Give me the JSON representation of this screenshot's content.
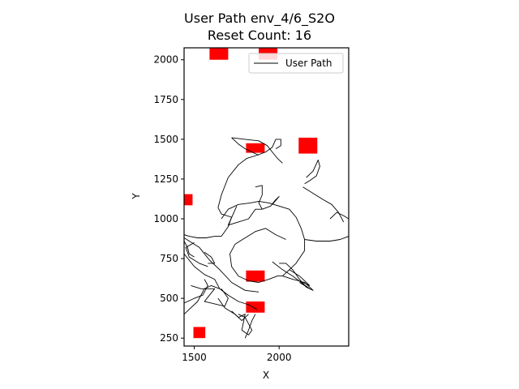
{
  "chart_data": {
    "type": "line",
    "title": "User Path env_4/6_S2O",
    "subtitle": "Reset Count: 16",
    "xlabel": "X",
    "ylabel": "Y",
    "xlim": [
      1440,
      2410
    ],
    "ylim": [
      200,
      2075
    ],
    "xticks": [
      1500,
      2000
    ],
    "yticks": [
      250,
      500,
      750,
      1000,
      1250,
      1500,
      1750,
      2000
    ],
    "grid": false,
    "legend": {
      "position": "top-right",
      "entries": [
        {
          "label": "User Path",
          "color": "#000000"
        }
      ]
    },
    "obstacles_color": "#ff0000",
    "path_color": "#000000",
    "obstacles": [
      {
        "x": 1645,
        "y": 2040,
        "w": 110,
        "h": 80
      },
      {
        "x": 1935,
        "y": 2040,
        "w": 110,
        "h": 80
      },
      {
        "x": 1860,
        "y": 1445,
        "w": 110,
        "h": 60
      },
      {
        "x": 2170,
        "y": 1460,
        "w": 110,
        "h": 100
      },
      {
        "x": 1455,
        "y": 1120,
        "w": 70,
        "h": 70
      },
      {
        "x": 1860,
        "y": 640,
        "w": 110,
        "h": 70
      },
      {
        "x": 1860,
        "y": 445,
        "w": 110,
        "h": 70
      },
      {
        "x": 1530,
        "y": 285,
        "w": 70,
        "h": 70
      }
    ],
    "series": [
      {
        "name": "User Path",
        "segments": [
          [
            [
              1440,
              880
            ],
            [
              1530,
              820
            ],
            [
              1590,
              740
            ],
            [
              1650,
              680
            ],
            [
              1720,
              600
            ],
            [
              1800,
              550
            ],
            [
              1880,
              540
            ]
          ],
          [
            [
              1440,
              780
            ],
            [
              1500,
              700
            ],
            [
              1560,
              650
            ],
            [
              1620,
              620
            ],
            [
              1650,
              560
            ],
            [
              1700,
              520
            ],
            [
              1760,
              480
            ],
            [
              1820,
              460
            ],
            [
              1870,
              430
            ]
          ],
          [
            [
              1500,
              850
            ],
            [
              1450,
              820
            ],
            [
              1470,
              760
            ],
            [
              1530,
              720
            ],
            [
              1580,
              700
            ]
          ],
          [
            [
              1440,
              400
            ],
            [
              1520,
              480
            ],
            [
              1560,
              560
            ],
            [
              1600,
              580
            ],
            [
              1650,
              560
            ],
            [
              1700,
              520
            ]
          ],
          [
            [
              1480,
              580
            ],
            [
              1540,
              560
            ],
            [
              1620,
              560
            ],
            [
              1560,
              480
            ],
            [
              1680,
              450
            ],
            [
              1700,
              500
            ],
            [
              1660,
              560
            ]
          ],
          [
            [
              1440,
              470
            ],
            [
              1500,
              500
            ],
            [
              1550,
              520
            ],
            [
              1580,
              580
            ],
            [
              1560,
              620
            ]
          ],
          [
            [
              1720,
              420
            ],
            [
              1760,
              380
            ],
            [
              1800,
              400
            ],
            [
              1780,
              300
            ],
            [
              1820,
              270
            ],
            [
              1840,
              300
            ],
            [
              1800,
              380
            ],
            [
              1760,
              400
            ]
          ],
          [
            [
              1800,
              250
            ],
            [
              1820,
              300
            ],
            [
              1840,
              360
            ],
            [
              1860,
              400
            ]
          ],
          [
            [
              1640,
              500
            ],
            [
              1680,
              440
            ],
            [
              1740,
              400
            ],
            [
              1780,
              360
            ],
            [
              1820,
              400
            ]
          ],
          [
            [
              1440,
              900
            ],
            [
              1470,
              890
            ],
            [
              1520,
              880
            ],
            [
              1570,
              880
            ],
            [
              1620,
              890
            ],
            [
              1660,
              890
            ]
          ],
          [
            [
              1660,
              890
            ],
            [
              1700,
              950
            ],
            [
              1720,
              1010
            ],
            [
              1660,
              1030
            ],
            [
              1640,
              1070
            ],
            [
              1660,
              1150
            ],
            [
              1700,
              1260
            ],
            [
              1760,
              1340
            ],
            [
              1810,
              1380
            ],
            [
              1870,
              1400
            ],
            [
              1920,
              1420
            ],
            [
              1960,
              1450
            ],
            [
              1980,
              1500
            ],
            [
              2010,
              1500
            ],
            [
              2010,
              1460
            ],
            [
              1980,
              1440
            ]
          ],
          [
            [
              1660,
              1000
            ],
            [
              1700,
              1060
            ],
            [
              1760,
              1090
            ],
            [
              1830,
              1100
            ],
            [
              1880,
              1110
            ],
            [
              1940,
              1100
            ],
            [
              2000,
              1080
            ],
            [
              2060,
              1060
            ],
            [
              2100,
              1010
            ],
            [
              2130,
              940
            ],
            [
              2150,
              870
            ],
            [
              2150,
              800
            ],
            [
              2100,
              720
            ],
            [
              2060,
              680
            ],
            [
              2020,
              640
            ]
          ],
          [
            [
              2020,
              640
            ],
            [
              2080,
              620
            ],
            [
              2150,
              600
            ],
            [
              2200,
              550
            ],
            [
              2160,
              570
            ],
            [
              2120,
              620
            ],
            [
              2080,
              680
            ],
            [
              2040,
              720
            ],
            [
              2000,
              720
            ]
          ],
          [
            [
              2060,
              680
            ],
            [
              2120,
              640
            ],
            [
              2180,
              580
            ],
            [
              2140,
              600
            ]
          ],
          [
            [
              2150,
              870
            ],
            [
              2220,
              860
            ],
            [
              2300,
              860
            ],
            [
              2360,
              870
            ],
            [
              2410,
              890
            ]
          ],
          [
            [
              2300,
              1000
            ],
            [
              2340,
              1040
            ],
            [
              2380,
              1020
            ],
            [
              2410,
              1000
            ]
          ],
          [
            [
              2140,
              1200
            ],
            [
              2200,
              1160
            ],
            [
              2260,
              1120
            ],
            [
              2310,
              1090
            ],
            [
              2350,
              1040
            ],
            [
              2380,
              980
            ]
          ],
          [
            [
              2160,
              1260
            ],
            [
              2200,
              1300
            ],
            [
              2230,
              1370
            ],
            [
              2240,
              1330
            ],
            [
              2220,
              1270
            ],
            [
              2180,
              1240
            ],
            [
              2150,
              1220
            ]
          ],
          [
            [
              1720,
              1510
            ],
            [
              1760,
              1470
            ],
            [
              1800,
              1440
            ],
            [
              1840,
              1420
            ],
            [
              1880,
              1400
            ]
          ],
          [
            [
              1720,
              1510
            ],
            [
              1800,
              1500
            ],
            [
              1880,
              1490
            ],
            [
              1930,
              1460
            ],
            [
              1960,
              1420
            ],
            [
              1990,
              1380
            ],
            [
              2020,
              1350
            ]
          ],
          [
            [
              1860,
              1200
            ],
            [
              1900,
              1210
            ],
            [
              1900,
              1150
            ],
            [
              1880,
              1100
            ],
            [
              1900,
              1060
            ],
            [
              1950,
              1080
            ],
            [
              1980,
              1120
            ],
            [
              2000,
              1140
            ],
            [
              1960,
              1090
            ]
          ],
          [
            [
              1750,
              1080
            ],
            [
              1700,
              960
            ],
            [
              1760,
              980
            ],
            [
              1820,
              1000
            ],
            [
              1860,
              1060
            ],
            [
              1900,
              1060
            ]
          ],
          [
            [
              1740,
              840
            ],
            [
              1800,
              880
            ],
            [
              1860,
              920
            ],
            [
              1920,
              940
            ],
            [
              1980,
              900
            ],
            [
              2040,
              870
            ]
          ],
          [
            [
              1740,
              840
            ],
            [
              1710,
              780
            ],
            [
              1720,
              700
            ],
            [
              1760,
              640
            ],
            [
              1820,
              610
            ],
            [
              1880,
              600
            ],
            [
              1940,
              620
            ],
            [
              1990,
              640
            ],
            [
              2020,
              640
            ]
          ],
          [
            [
              1960,
              730
            ],
            [
              2020,
              680
            ],
            [
              2080,
              640
            ],
            [
              2180,
              560
            ],
            [
              2120,
              600
            ]
          ],
          [
            [
              1560,
              790
            ],
            [
              1600,
              760
            ],
            [
              1620,
              720
            ],
            [
              1580,
              720
            ]
          ],
          [
            [
              1440,
              860
            ],
            [
              1460,
              820
            ],
            [
              1470,
              780
            ],
            [
              1500,
              760
            ]
          ]
        ]
      }
    ]
  }
}
